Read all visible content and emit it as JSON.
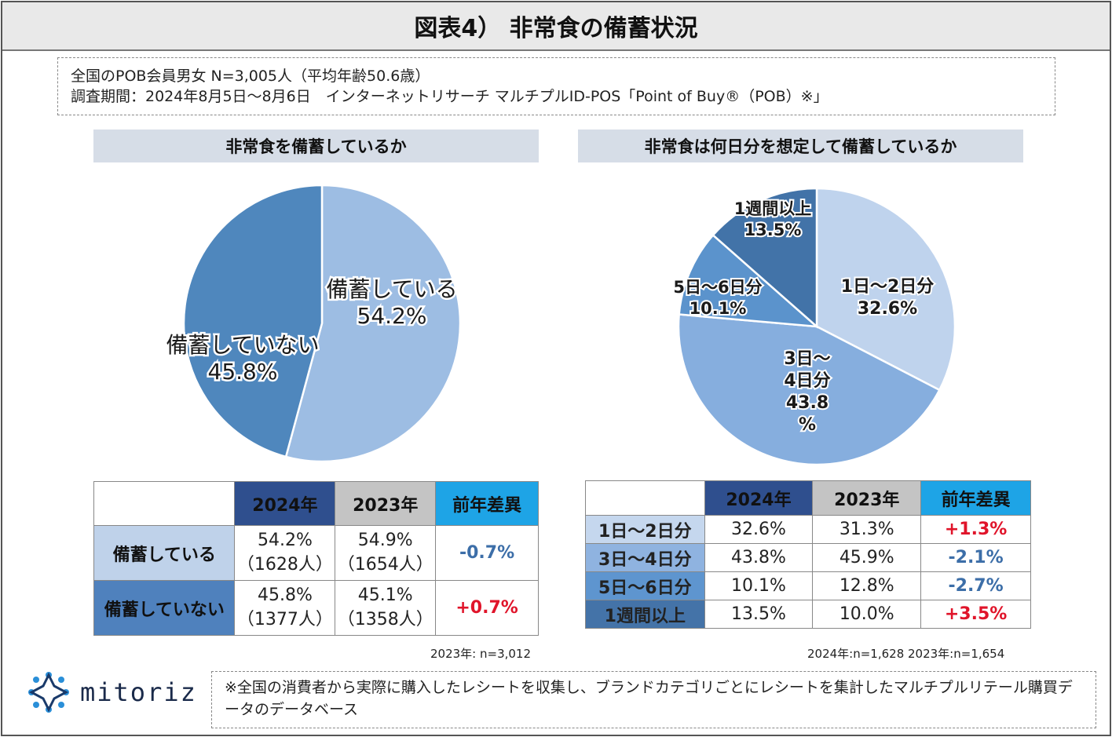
{
  "title": "図表4） 非常食の備蓄状況",
  "survey": {
    "line1": "全国のPOB会員男女 N=3,005人（平均年齢50.6歳）",
    "line2": "調査期間：2024年8月5日～8月6日　インターネットリサーチ マルチプルID-POS「Point of Buy®（POB）※」"
  },
  "left": {
    "heading": "非常食を備蓄しているか",
    "table": {
      "headers": [
        "2024年",
        "2023年",
        "前年差異"
      ],
      "rows": [
        {
          "label": "備蓄している",
          "y2024": "54.2%",
          "y2024n": "（1628人）",
          "y2023": "54.9%",
          "y2023n": "（1654人）",
          "diff": "-0.7%"
        },
        {
          "label": "備蓄していない",
          "y2024": "45.8%",
          "y2024n": "（1377人）",
          "y2023": "45.1%",
          "y2023n": "（1358人）",
          "diff": "+0.7%"
        }
      ]
    },
    "note": "2023年: n=3,012"
  },
  "right": {
    "heading": "非常食は何日分を想定して備蓄しているか",
    "table": {
      "headers": [
        "2024年",
        "2023年",
        "前年差異"
      ],
      "rows": [
        {
          "label": "1日～2日分",
          "y2024": "32.6%",
          "y2023": "31.3%",
          "diff": "+1.3%"
        },
        {
          "label": "3日～4日分",
          "y2024": "43.8%",
          "y2023": "45.9%",
          "diff": "-2.1%"
        },
        {
          "label": "5日～6日分",
          "y2024": "10.1%",
          "y2023": "12.8%",
          "diff": "-2.7%"
        },
        {
          "label": "1週間以上",
          "y2024": "13.5%",
          "y2023": "10.0%",
          "diff": "+3.5%"
        }
      ]
    },
    "note": "2024年:n=1,628  2023年:n=1,654"
  },
  "footer": {
    "text": "※全国の消費者から実際に購入したレシートを収集し、ブランドカテゴリごとにレシートを集計したマルチプルリテール購買データのデータベース",
    "logo": "mitoriz"
  },
  "chart_data": [
    {
      "type": "pie",
      "title": "非常食を備蓄しているか",
      "slices": [
        {
          "label": "備蓄している",
          "value": 54.2,
          "display": "54.2%",
          "color": "#9dbde3"
        },
        {
          "label": "備蓄していない",
          "value": 45.8,
          "display": "45.8%",
          "color": "#4f87bd"
        }
      ]
    },
    {
      "type": "pie",
      "title": "非常食は何日分を想定して備蓄しているか",
      "slices": [
        {
          "label": "1日～2日分",
          "value": 32.6,
          "display": "32.6%",
          "color": "#bfd3ed"
        },
        {
          "label": "3日～4日分",
          "value": 43.8,
          "display": "43.8%",
          "color": "#86aede"
        },
        {
          "label": "5日～6日分",
          "value": 10.1,
          "display": "10.1%",
          "color": "#5b93cc"
        },
        {
          "label": "1週間以上",
          "value": 13.5,
          "display": "13.5%",
          "color": "#4273a8"
        }
      ]
    }
  ]
}
